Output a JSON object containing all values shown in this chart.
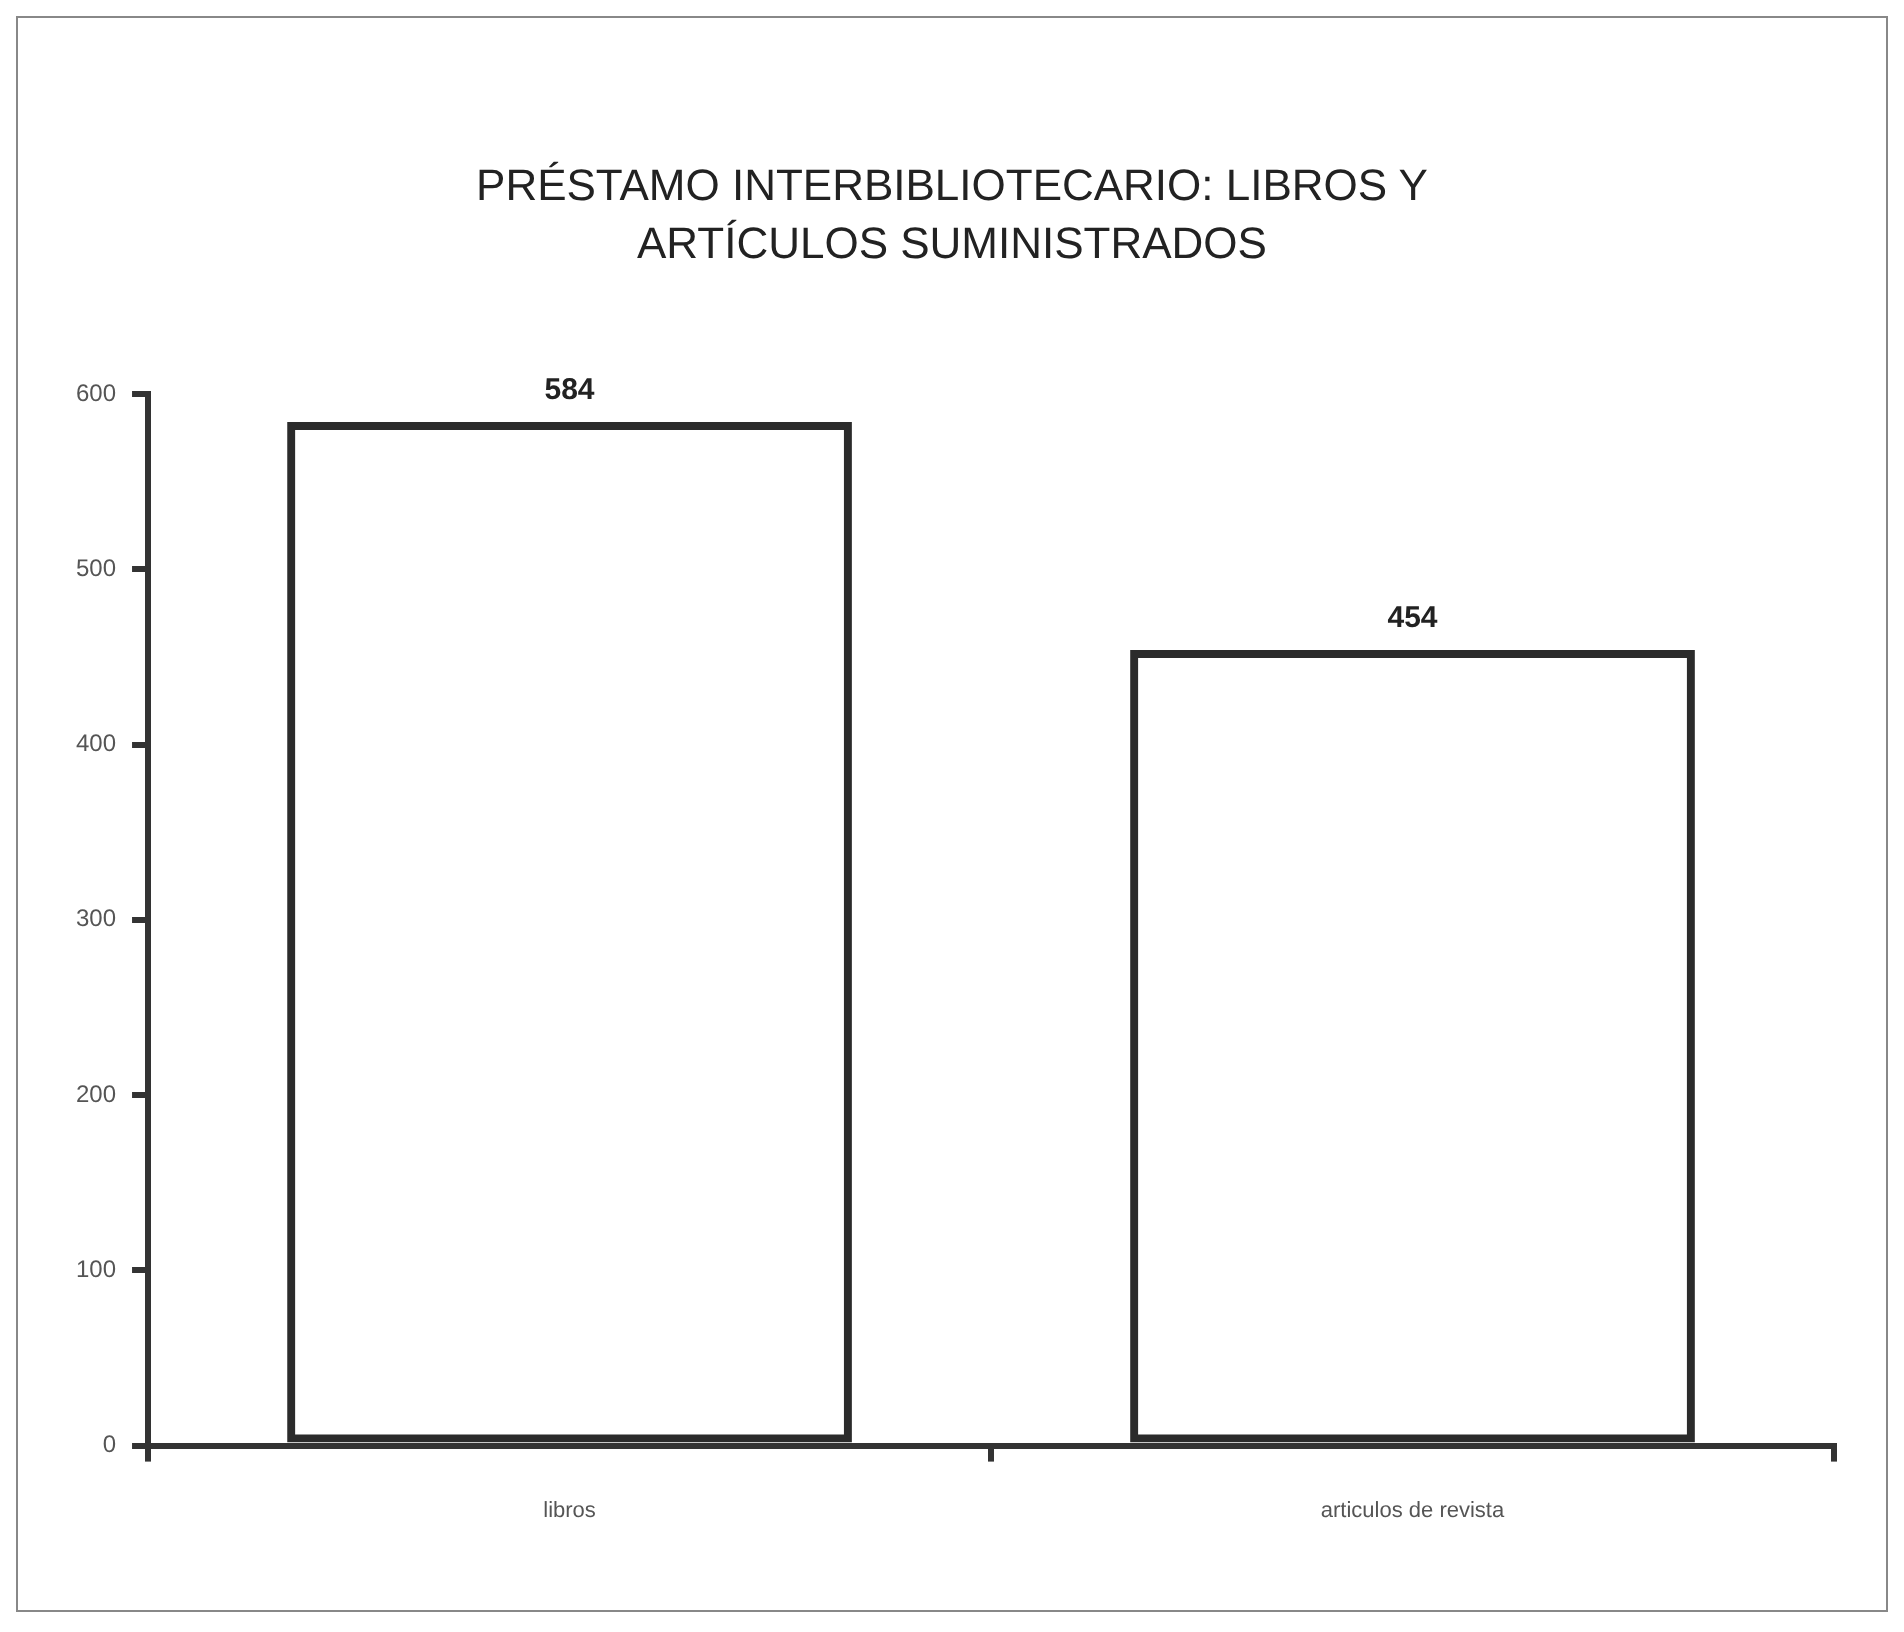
{
  "chart_data": {
    "type": "bar",
    "title": "PRÉSTAMO INTERBIBLIOTECARIO: LIBROS Y ARTÍCULOS SUMINISTRADOS",
    "categories": [
      "libros",
      "articulos de revista"
    ],
    "values": [
      584,
      454
    ],
    "color": "#2b2b2b",
    "ylim": [
      0,
      600
    ],
    "yticks": [
      0,
      100,
      200,
      300,
      400,
      500,
      600
    ],
    "grid": false,
    "legend": false,
    "data_labels": true
  }
}
